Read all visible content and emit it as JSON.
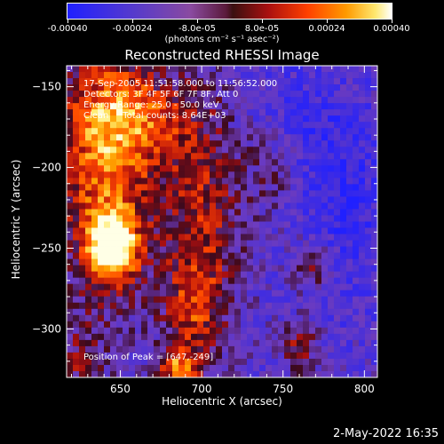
{
  "colorbar": {
    "min": -0.0004,
    "max": 0.0004,
    "tick_labels": [
      "-0.00040",
      "-0.00024",
      "-8.0e-05",
      "8.0e-05",
      "0.00024",
      "0.00040"
    ],
    "units": "(photons cm⁻² s⁻¹ asec⁻²)"
  },
  "header": {
    "title": "Reconstructed RHESSI Image"
  },
  "info": {
    "time_range": "17-Sep-2005 11:51:58.000 to 11:56:52.000",
    "detectors": "Detectors: 3F 4F 5F 6F 7F 8F, Att 0",
    "energy": "Energy Range: 25.0 - 50.0 keV",
    "method": "Clean     Total counts: 8.64E+03",
    "peak": "Position of Peak = [647,-249]"
  },
  "footer": {
    "timestamp": "2-May-2022 16:35"
  },
  "chart_data": {
    "type": "heatmap",
    "title": "Reconstructed RHESSI Image",
    "xlabel": "Heliocentric X (arcsec)",
    "ylabel": "Heliocentric Y (arcsec)",
    "xlim": [
      617,
      808
    ],
    "ylim": [
      -330,
      -137
    ],
    "x_ticks": [
      650,
      700,
      750,
      800
    ],
    "y_ticks": [
      -150,
      -200,
      -250,
      -300
    ],
    "peak": {
      "x": 647,
      "y": -249
    },
    "colors": {
      "negative": "#2020ff",
      "mid_negative": "#6a3cb8",
      "zero": "#3a0a20",
      "positive": "#cc1010",
      "high": "#ff9a00",
      "peak": "#ffffe0"
    }
  }
}
